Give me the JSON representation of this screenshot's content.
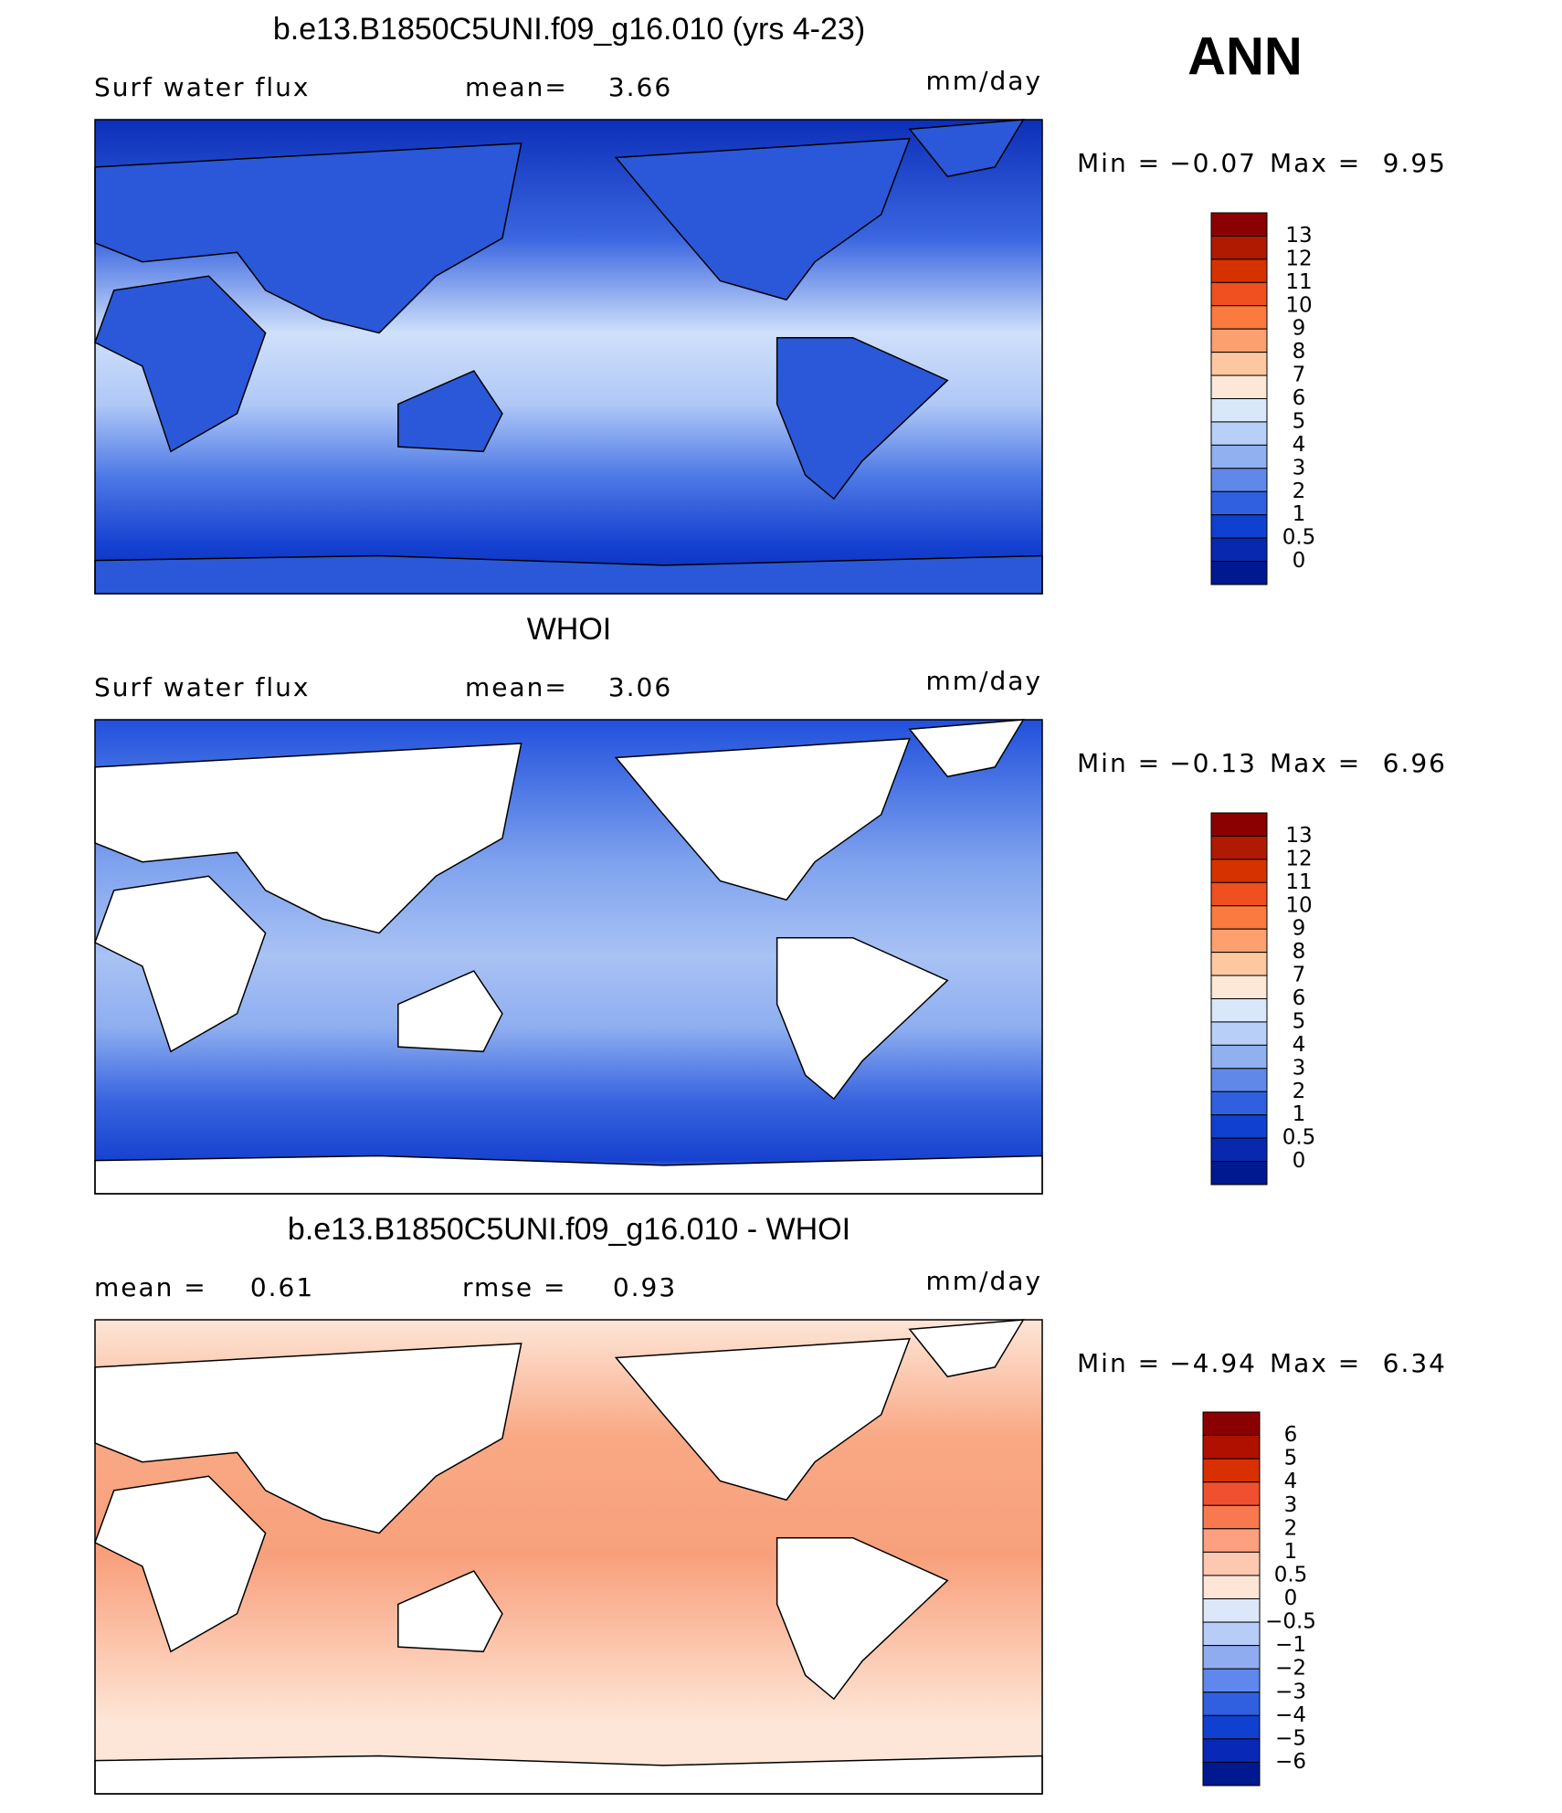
{
  "header": {
    "label": "ANN"
  },
  "panels": [
    {
      "title": "b.e13.B1850C5UNI.f09_g16.010 (yrs 4-23)",
      "stats": [
        {
          "label": "Surf water flux"
        },
        {
          "label": "mean=",
          "value": "3.66"
        }
      ],
      "units": "mm/day",
      "min_label": "Min =",
      "min": "−0.07",
      "max_label": "Max =",
      "max": "9.95",
      "colorbar": {
        "labels": [
          "13",
          "12",
          "11",
          "10",
          "9",
          "8",
          "7",
          "6",
          "5",
          "4",
          "3",
          "2",
          "1",
          "0.5",
          "0"
        ],
        "colors": [
          "#8b0000",
          "#b01a00",
          "#d63200",
          "#f05020",
          "#fa7a40",
          "#fca070",
          "#fdc8a0",
          "#fde8d8",
          "#d8e8f8",
          "#b8d0f8",
          "#90b0f0",
          "#6088e8",
          "#3060e0",
          "#1040d0",
          "#0828b0",
          "#001890"
        ]
      }
    },
    {
      "title": "WHOI",
      "stats": [
        {
          "label": "Surf water flux"
        },
        {
          "label": "mean=",
          "value": "3.06"
        }
      ],
      "units": "mm/day",
      "min_label": "Min =",
      "min": "−0.13",
      "max_label": "Max =",
      "max": "6.96",
      "colorbar": {
        "labels": [
          "13",
          "12",
          "11",
          "10",
          "9",
          "8",
          "7",
          "6",
          "5",
          "4",
          "3",
          "2",
          "1",
          "0.5",
          "0"
        ],
        "colors": [
          "#8b0000",
          "#b01a00",
          "#d63200",
          "#f05020",
          "#fa7a40",
          "#fca070",
          "#fdc8a0",
          "#fde8d8",
          "#d8e8f8",
          "#b8d0f8",
          "#90b0f0",
          "#6088e8",
          "#3060e0",
          "#1040d0",
          "#0828b0",
          "#001890"
        ]
      }
    },
    {
      "title": "b.e13.B1850C5UNI.f09_g16.010 - WHOI",
      "stats": [
        {
          "label": "mean =",
          "value": "0.61"
        },
        {
          "label": "rmse =",
          "value": "0.93"
        }
      ],
      "units": "mm/day",
      "min_label": "Min =",
      "min": "−4.94",
      "max_label": "Max =",
      "max": "6.34",
      "colorbar": {
        "labels": [
          "6",
          "5",
          "4",
          "3",
          "2",
          "1",
          "0.5",
          "0",
          "−0.5",
          "−1",
          "−2",
          "−3",
          "−4",
          "−5",
          "−6"
        ],
        "colors": [
          "#8b0000",
          "#b01000",
          "#d83000",
          "#f05030",
          "#f87850",
          "#fca080",
          "#fdc8b0",
          "#fde6d8",
          "#dce8fa",
          "#b8ccf8",
          "#90acf0",
          "#6088ec",
          "#3060e0",
          "#1040d0",
          "#0828b8",
          "#001890"
        ]
      }
    }
  ]
}
